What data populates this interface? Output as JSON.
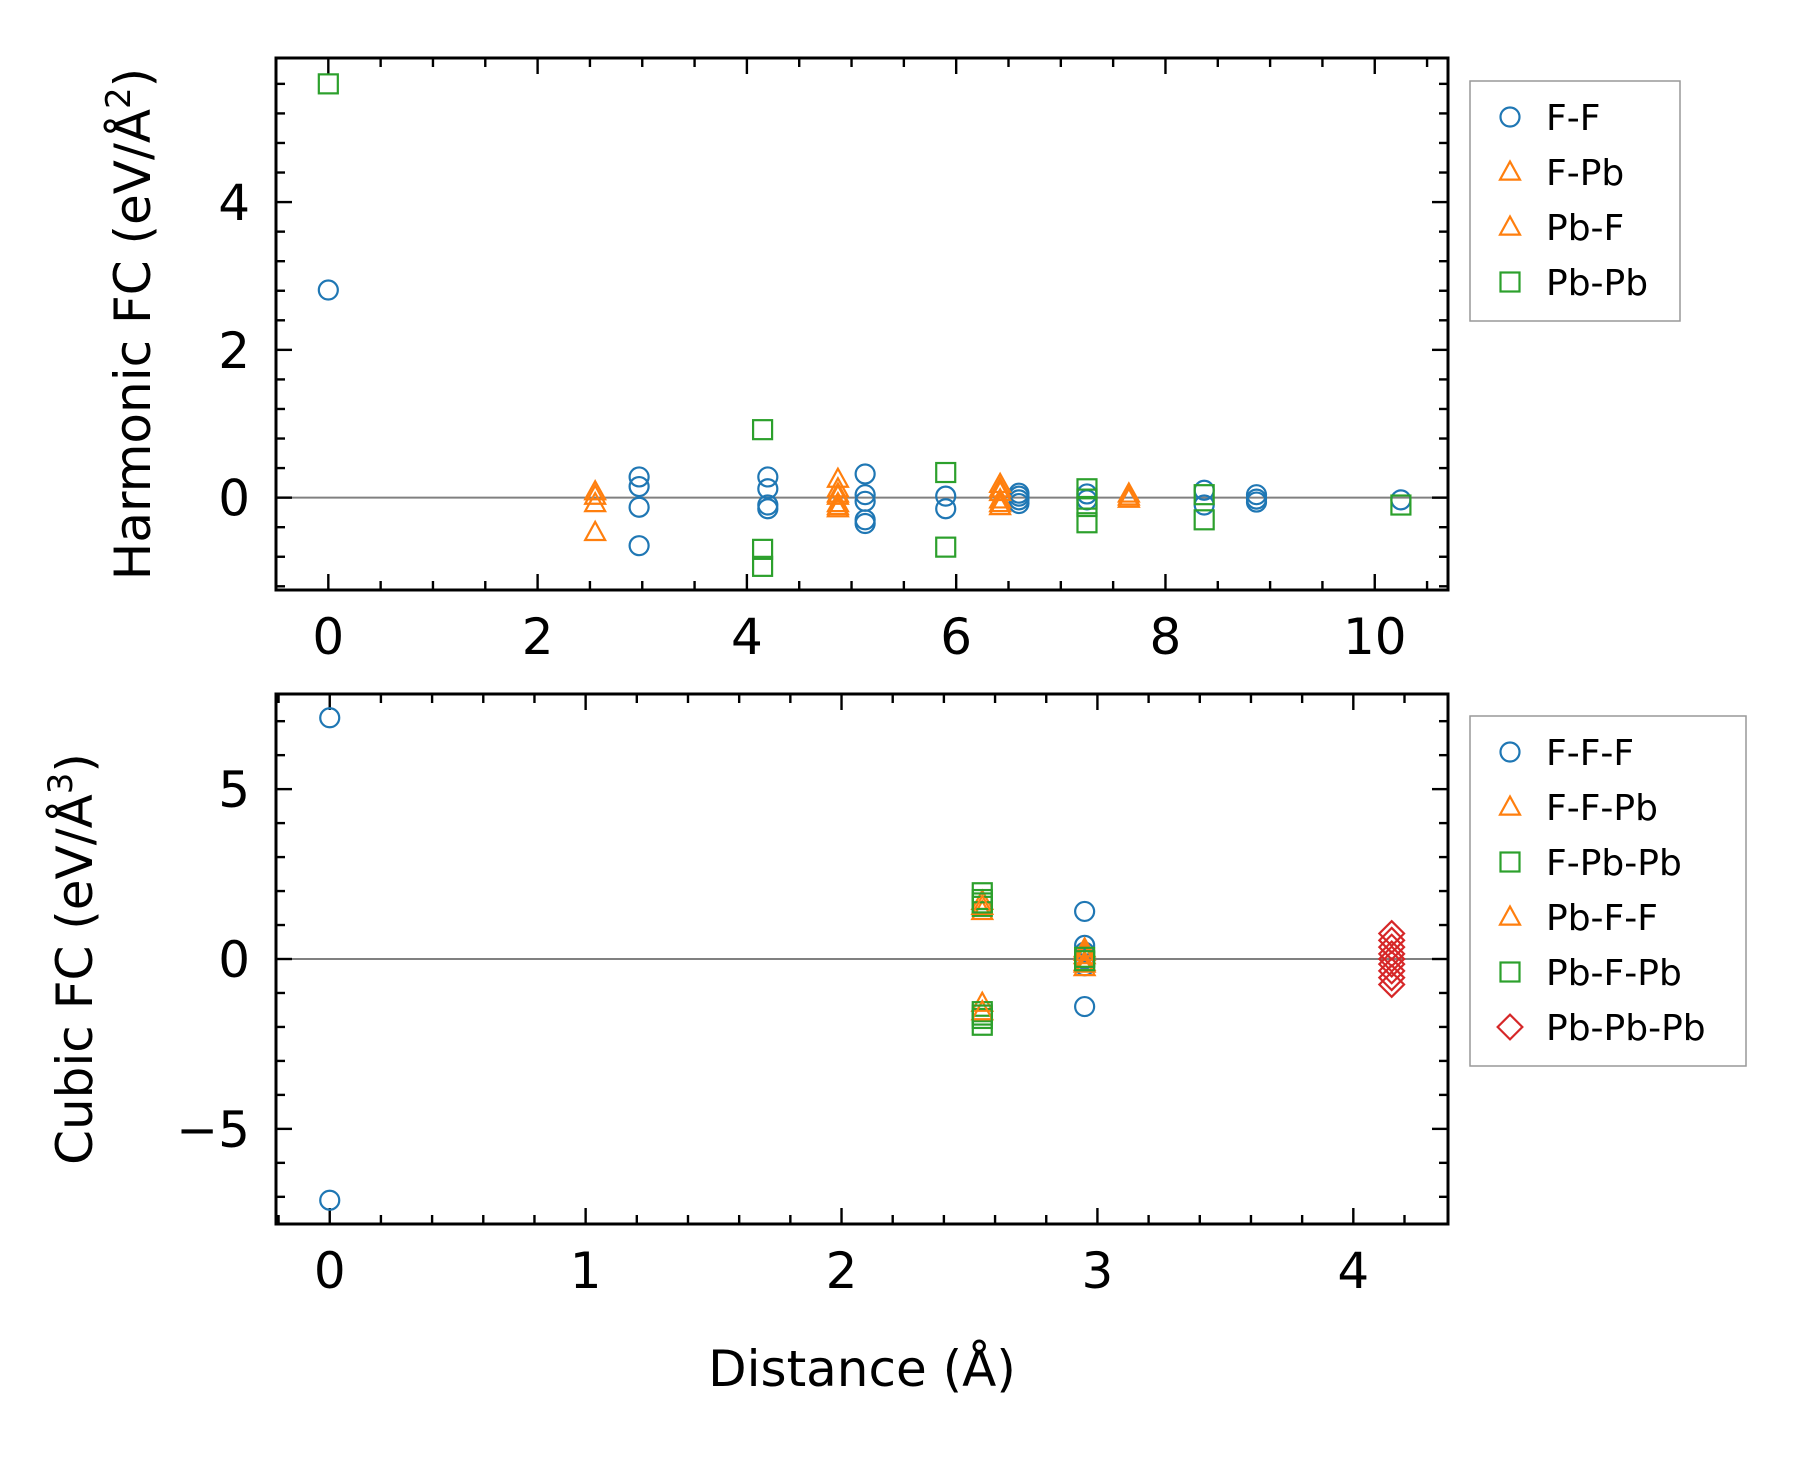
{
  "figure": {
    "colors": {
      "F-F": "#1f77b4",
      "F-Pb": "#ff7f0e",
      "Pb-F": "#ff7f0e",
      "Pb-Pb": "#2ca02c",
      "F-F-F": "#1f77b4",
      "F-F-Pb": "#ff7f0e",
      "F-Pb-Pb": "#2ca02c",
      "Pb-F-F": "#ff7f0e",
      "Pb-F-Pb": "#2ca02c",
      "Pb-Pb-Pb": "#d62728"
    }
  },
  "chart_data": [
    {
      "type": "scatter",
      "title": "",
      "xlabel": "",
      "ylabel": "Harmonic FC (eV/Å",
      "ylabel_exp": "2",
      "ylabel_close": ")",
      "xlim": [
        -0.5,
        10.7
      ],
      "ylim": [
        -1.25,
        5.95
      ],
      "xticks": [
        0,
        2,
        4,
        6,
        8,
        10
      ],
      "xtick_labels": [
        "0",
        "2",
        "4",
        "6",
        "8",
        "10"
      ],
      "yticks": [
        0,
        2,
        4
      ],
      "ytick_labels": [
        "0",
        "2",
        "4"
      ],
      "zero_line": true,
      "legend_position": "outside-right-top",
      "series": [
        {
          "name": "F-F",
          "marker": "circle",
          "color": "#1f77b4",
          "points": [
            [
              0,
              2.81
            ],
            [
              2.97,
              0.28
            ],
            [
              2.97,
              0.15
            ],
            [
              2.97,
              -0.13
            ],
            [
              2.97,
              -0.65
            ],
            [
              4.2,
              0.28
            ],
            [
              4.2,
              0.12
            ],
            [
              4.2,
              -0.1
            ],
            [
              4.2,
              -0.15
            ],
            [
              5.13,
              0.32
            ],
            [
              5.13,
              0.04
            ],
            [
              5.13,
              -0.05
            ],
            [
              5.13,
              -0.3
            ],
            [
              5.13,
              -0.35
            ],
            [
              5.9,
              0.02
            ],
            [
              5.9,
              -0.15
            ],
            [
              6.6,
              0.06
            ],
            [
              6.6,
              0.02
            ],
            [
              6.6,
              -0.03
            ],
            [
              6.6,
              -0.08
            ],
            [
              7.25,
              0.05
            ],
            [
              7.25,
              -0.03
            ],
            [
              8.37,
              0.1
            ],
            [
              8.37,
              -0.1
            ],
            [
              8.87,
              0.04
            ],
            [
              8.87,
              -0.02
            ],
            [
              8.87,
              -0.06
            ],
            [
              10.25,
              -0.03
            ]
          ]
        },
        {
          "name": "F-Pb",
          "marker": "triangle",
          "color": "#ff7f0e",
          "points": [
            [
              2.55,
              0.08
            ],
            [
              2.55,
              -0.08
            ],
            [
              2.55,
              -0.47
            ],
            [
              4.87,
              0.25
            ],
            [
              4.87,
              0.12
            ],
            [
              4.87,
              0.02
            ],
            [
              4.87,
              -0.08
            ],
            [
              4.87,
              -0.15
            ],
            [
              6.42,
              0.18
            ],
            [
              6.42,
              0.07
            ],
            [
              6.42,
              -0.03
            ],
            [
              6.42,
              -0.12
            ],
            [
              7.65,
              0.05
            ],
            [
              7.65,
              -0.02
            ]
          ]
        },
        {
          "name": "Pb-F",
          "marker": "triangle",
          "color": "#ff7f0e",
          "points": [
            [
              2.55,
              0.02
            ],
            [
              4.87,
              0.05
            ],
            [
              4.87,
              -0.12
            ],
            [
              6.42,
              0.12
            ],
            [
              6.42,
              -0.08
            ],
            [
              7.65,
              0.01
            ]
          ]
        },
        {
          "name": "Pb-Pb",
          "marker": "square",
          "color": "#2ca02c",
          "points": [
            [
              0,
              5.6
            ],
            [
              4.15,
              0.92
            ],
            [
              4.15,
              -0.7
            ],
            [
              4.15,
              -0.93
            ],
            [
              5.9,
              0.34
            ],
            [
              5.9,
              -0.67
            ],
            [
              7.25,
              0.12
            ],
            [
              7.25,
              -0.02
            ],
            [
              7.25,
              -0.12
            ],
            [
              7.25,
              -0.34
            ],
            [
              8.37,
              0.04
            ],
            [
              8.37,
              -0.3
            ],
            [
              10.25,
              -0.1
            ]
          ]
        }
      ]
    },
    {
      "type": "scatter",
      "title": "",
      "xlabel": "Distance (Å)",
      "ylabel": "Cubic FC (eV/Å",
      "ylabel_exp": "3",
      "ylabel_close": ")",
      "xlim": [
        -0.21,
        4.37
      ],
      "ylim": [
        -7.8,
        7.8
      ],
      "xticks": [
        0,
        1,
        2,
        3,
        4
      ],
      "xtick_labels": [
        "0",
        "1",
        "2",
        "3",
        "4"
      ],
      "yticks": [
        -5,
        0,
        5
      ],
      "ytick_labels": [
        "−5",
        "0",
        "5"
      ],
      "zero_line": true,
      "legend_position": "outside-right-top",
      "series": [
        {
          "name": "F-F-F",
          "marker": "circle",
          "color": "#1f77b4",
          "points": [
            [
              0,
              7.1
            ],
            [
              0,
              -7.1
            ],
            [
              2.95,
              1.4
            ],
            [
              2.95,
              0.4
            ],
            [
              2.95,
              0.2
            ],
            [
              2.95,
              0.0
            ],
            [
              2.95,
              -0.2
            ],
            [
              2.95,
              -1.4
            ]
          ]
        },
        {
          "name": "F-F-Pb",
          "marker": "triangle",
          "color": "#ff7f0e",
          "points": [
            [
              2.55,
              1.4
            ],
            [
              2.55,
              1.7
            ],
            [
              2.55,
              -1.3
            ],
            [
              2.95,
              0.3
            ],
            [
              2.95,
              0.1
            ],
            [
              2.95,
              -0.1
            ],
            [
              2.95,
              -0.25
            ]
          ]
        },
        {
          "name": "F-Pb-Pb",
          "marker": "square",
          "color": "#2ca02c",
          "points": [
            [
              2.55,
              1.95
            ],
            [
              2.55,
              1.75
            ],
            [
              2.55,
              1.55
            ],
            [
              2.55,
              -1.55
            ],
            [
              2.55,
              -1.75
            ],
            [
              2.55,
              -1.95
            ]
          ]
        },
        {
          "name": "Pb-F-F",
          "marker": "triangle",
          "color": "#ff7f0e",
          "points": [
            [
              2.55,
              1.55
            ],
            [
              2.55,
              -1.55
            ],
            [
              2.95,
              0.2
            ],
            [
              2.95,
              -0.15
            ]
          ]
        },
        {
          "name": "Pb-F-Pb",
          "marker": "square",
          "color": "#2ca02c",
          "points": [
            [
              2.55,
              1.65
            ],
            [
              2.55,
              -1.65
            ],
            [
              2.95,
              0.05
            ],
            [
              2.95,
              -0.05
            ]
          ]
        },
        {
          "name": "Pb-Pb-Pb",
          "marker": "diamond",
          "color": "#d62728",
          "points": [
            [
              4.15,
              0.75
            ],
            [
              4.15,
              0.55
            ],
            [
              4.15,
              0.35
            ],
            [
              4.15,
              0.15
            ],
            [
              4.15,
              0.0
            ],
            [
              4.15,
              -0.15
            ],
            [
              4.15,
              -0.35
            ],
            [
              4.15,
              -0.55
            ],
            [
              4.15,
              -0.75
            ]
          ]
        }
      ]
    }
  ]
}
